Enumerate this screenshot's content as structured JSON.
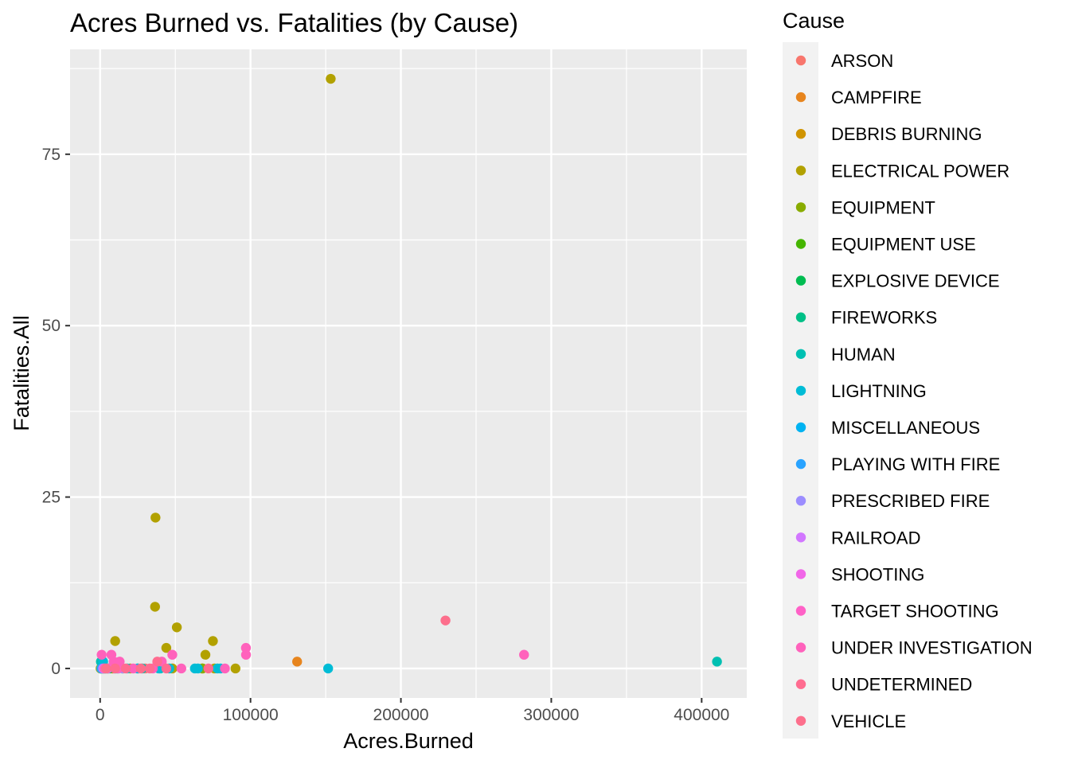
{
  "chart_data": {
    "type": "scatter",
    "title": "Acres Burned vs. Fatalities (by Cause)",
    "xlabel": "Acres.Burned",
    "ylabel": "Fatalities.All",
    "xlim": [
      -20000,
      430000
    ],
    "ylim": [
      -4.3,
      90.3
    ],
    "x_ticks": [
      0,
      100000,
      200000,
      300000,
      400000
    ],
    "x_tick_labels": [
      "0",
      "100000",
      "200000",
      "300000",
      "400000"
    ],
    "y_ticks": [
      0,
      25,
      50,
      75
    ],
    "y_tick_labels": [
      "0",
      "25",
      "50",
      "75"
    ],
    "grid": true,
    "legend_title": "Cause",
    "legend_position": "right",
    "series": [
      {
        "name": "ARSON",
        "color": "#F8766D",
        "points": [
          [
            1500,
            0
          ],
          [
            9000,
            0
          ],
          [
            30000,
            0
          ]
        ]
      },
      {
        "name": "CAMPFIRE",
        "color": "#E7851E",
        "points": [
          [
            131000,
            1
          ],
          [
            1000,
            0
          ],
          [
            5000,
            0
          ]
        ]
      },
      {
        "name": "DEBRIS BURNING",
        "color": "#D09400",
        "points": [
          [
            2000,
            0
          ],
          [
            8000,
            0
          ],
          [
            20000,
            0
          ]
        ]
      },
      {
        "name": "ELECTRICAL POWER",
        "color": "#B2A100",
        "points": [
          [
            153336,
            86
          ],
          [
            36807,
            22
          ],
          [
            36523,
            9
          ],
          [
            51000,
            6
          ],
          [
            10000,
            4
          ],
          [
            75000,
            4
          ],
          [
            44000,
            3
          ],
          [
            70000,
            2
          ],
          [
            48000,
            0
          ],
          [
            90000,
            0
          ],
          [
            76000,
            0
          ],
          [
            68000,
            0
          ],
          [
            300,
            0
          ]
        ]
      },
      {
        "name": "EQUIPMENT",
        "color": "#89AC00",
        "points": [
          [
            500,
            0
          ],
          [
            25000,
            0
          ],
          [
            68000,
            0
          ]
        ]
      },
      {
        "name": "EQUIPMENT USE",
        "color": "#45B500",
        "points": [
          [
            3000,
            0
          ],
          [
            15000,
            0
          ]
        ]
      },
      {
        "name": "EXPLOSIVE DEVICE",
        "color": "#00BC51",
        "points": [
          [
            6000,
            0
          ]
        ]
      },
      {
        "name": "FIREWORKS",
        "color": "#00C087",
        "points": [
          [
            1200,
            0
          ],
          [
            4000,
            0
          ]
        ]
      },
      {
        "name": "HUMAN",
        "color": "#00C0B2",
        "points": [
          [
            410203,
            1
          ],
          [
            500,
            1
          ],
          [
            2000,
            0
          ],
          [
            12000,
            0
          ],
          [
            28000,
            0
          ],
          [
            40000,
            0
          ]
        ]
      },
      {
        "name": "LIGHTNING",
        "color": "#00BCD6",
        "points": [
          [
            151623,
            0
          ],
          [
            63000,
            0
          ],
          [
            46000,
            0
          ],
          [
            39000,
            0
          ],
          [
            18000,
            0
          ],
          [
            5000,
            0
          ],
          [
            11000,
            0
          ],
          [
            78000,
            0
          ],
          [
            80000,
            0
          ],
          [
            65000,
            0
          ],
          [
            2000,
            1
          ],
          [
            1000,
            0
          ]
        ]
      },
      {
        "name": "MISCELLANEOUS",
        "color": "#00B3F2",
        "points": [
          [
            3000,
            0
          ],
          [
            10000,
            0
          ],
          [
            25000,
            0
          ]
        ]
      },
      {
        "name": "PLAYING WITH FIRE",
        "color": "#29A3FF",
        "points": [
          [
            800,
            0
          ]
        ]
      },
      {
        "name": "PRESCRIBED FIRE",
        "color": "#9C8DFF",
        "points": [
          [
            15000,
            0
          ]
        ]
      },
      {
        "name": "RAILROAD",
        "color": "#D277FF",
        "points": [
          [
            2000,
            0
          ]
        ]
      },
      {
        "name": "SHOOTING",
        "color": "#F166E8",
        "points": [
          [
            5000,
            0
          ]
        ]
      },
      {
        "name": "TARGET SHOOTING",
        "color": "#FF61C7",
        "points": [
          [
            12000,
            0
          ]
        ]
      },
      {
        "name": "UNDER INVESTIGATION",
        "color": "#FF62BC",
        "points": [
          [
            281893,
            2
          ],
          [
            96949,
            3
          ],
          [
            97000,
            2
          ],
          [
            48000,
            2
          ],
          [
            41000,
            1
          ],
          [
            7500,
            2
          ],
          [
            1000,
            2
          ],
          [
            13000,
            1
          ],
          [
            9000,
            1
          ],
          [
            3000,
            0
          ],
          [
            22000,
            0
          ],
          [
            35000,
            0
          ],
          [
            54000,
            0
          ],
          [
            83000,
            0
          ]
        ]
      },
      {
        "name": "UNDETERMINED",
        "color": "#FF6C90",
        "points": [
          [
            38000,
            1
          ],
          [
            17000,
            0
          ],
          [
            33000,
            0
          ],
          [
            44000,
            0
          ],
          [
            10000,
            0
          ],
          [
            72000,
            0
          ]
        ]
      },
      {
        "name": "VEHICLE",
        "color": "#FD6F8C",
        "points": [
          [
            229651,
            7
          ],
          [
            4000,
            0
          ],
          [
            27000,
            0
          ]
        ]
      }
    ]
  }
}
